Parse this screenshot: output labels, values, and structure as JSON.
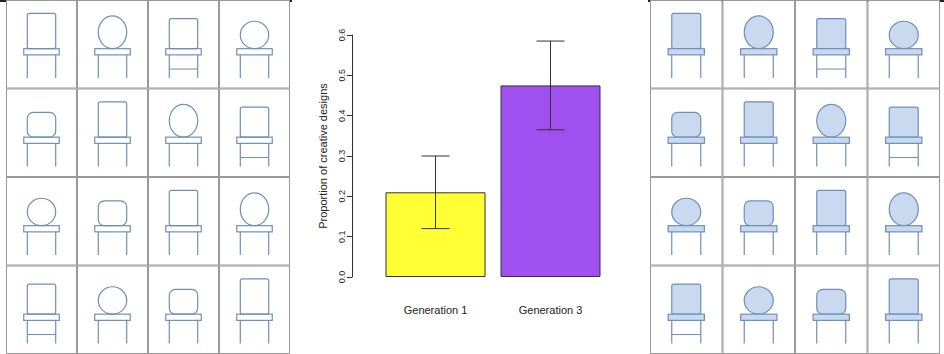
{
  "chart_data": {
    "type": "bar",
    "y_label": "Proportion of creative designs",
    "categories": [
      "Generation 1",
      "Generation 3"
    ],
    "values": [
      0.21,
      0.475
    ],
    "colors": [
      "#ffff33",
      "#a150f0"
    ],
    "error_low": [
      0.12,
      0.365
    ],
    "error_high": [
      0.3,
      0.585
    ],
    "ylim": [
      0,
      0.6
    ],
    "yticks": [
      {
        "value": 0,
        "label": "0.0"
      },
      0.1,
      0.2,
      0.3,
      0.4,
      0.5,
      0.6
    ],
    "grid": false
  }
}
